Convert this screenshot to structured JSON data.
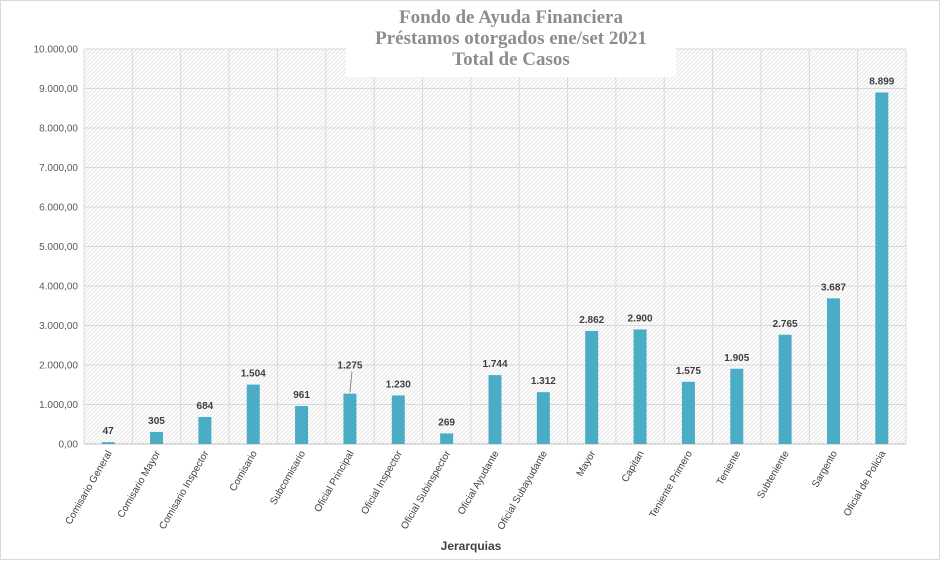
{
  "chart_data": {
    "type": "bar",
    "title_lines": [
      "Fondo de Ayuda Financiera",
      "Préstamos otorgados ene/set 2021",
      "Total de Casos"
    ],
    "xlabel": "Jerarquias",
    "ylabel": "",
    "ylim": [
      0,
      10000
    ],
    "y_ticks": [
      {
        "value": 0,
        "label": "0,00"
      },
      {
        "value": 1000,
        "label": "1.000,00"
      },
      {
        "value": 2000,
        "label": "2.000,00"
      },
      {
        "value": 3000,
        "label": "3.000,00"
      },
      {
        "value": 4000,
        "label": "4.000,00"
      },
      {
        "value": 5000,
        "label": "5.000,00"
      },
      {
        "value": 6000,
        "label": "6.000,00"
      },
      {
        "value": 7000,
        "label": "7.000,00"
      },
      {
        "value": 8000,
        "label": "8.000,00"
      },
      {
        "value": 9000,
        "label": "9.000,00"
      },
      {
        "value": 10000,
        "label": "10.000,00"
      }
    ],
    "categories": [
      "Comisario General",
      "Comisario Mayor",
      "Comisario Inspector",
      "Comisario",
      "Subcomisario",
      "Oficial Principal",
      "Oficial Inspector",
      "Oficial Subinspector",
      "Oficial Ayudante",
      "Oficial Subayudante",
      "Mayor",
      "Capitan",
      "Teniente Primero",
      "Teniente",
      "Subteniente",
      "Sargento",
      "Oficial de Policia"
    ],
    "values": [
      47,
      305,
      684,
      1504,
      961,
      1275,
      1230,
      269,
      1744,
      1312,
      2862,
      2900,
      1575,
      1905,
      2765,
      3687,
      8899
    ],
    "value_labels": [
      "47",
      "305",
      "684",
      "1.504",
      "961",
      "1.275",
      "1.230",
      "269",
      "1.744",
      "1.312",
      "2.862",
      "2.900",
      "1.575",
      "1.905",
      "2.765",
      "3.687",
      "8.899"
    ],
    "grid": true,
    "legend": "none",
    "bar_color": "#4bacc6"
  }
}
